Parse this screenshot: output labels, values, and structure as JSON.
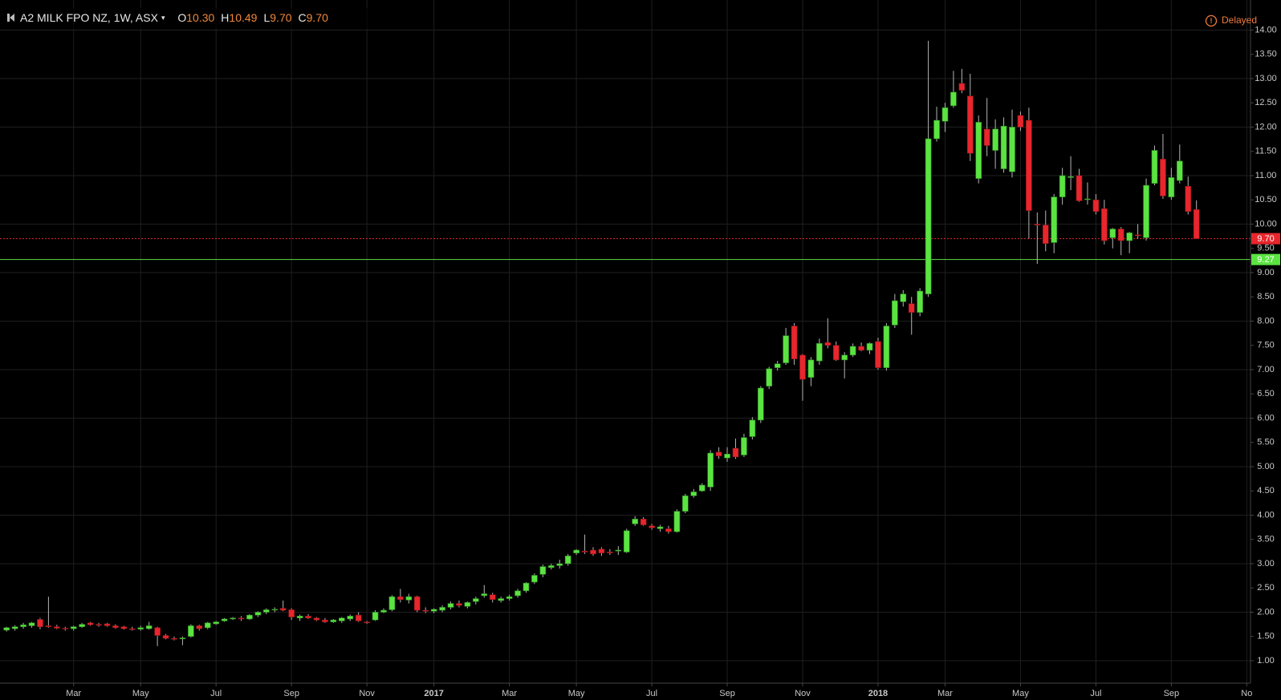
{
  "header": {
    "symbol": "A2 MILK FPO NZ, 1W, ASX",
    "ohlc": [
      {
        "key": "O",
        "value": "10.30"
      },
      {
        "key": "H",
        "value": "10.49"
      },
      {
        "key": "L",
        "value": "9.70"
      },
      {
        "key": "C",
        "value": "9.70"
      }
    ],
    "status": "Delayed"
  },
  "chart_data": {
    "type": "candlestick",
    "up_color": "#5be342",
    "down_color": "#e8262d",
    "grid": true,
    "categories": [
      null,
      null,
      null,
      null,
      null,
      null,
      null,
      null,
      "Mar",
      null,
      null,
      null,
      null,
      null,
      null,
      null,
      "May",
      null,
      null,
      null,
      null,
      null,
      null,
      null,
      null,
      "Jul",
      null,
      null,
      null,
      null,
      null,
      null,
      null,
      null,
      "Sep",
      null,
      null,
      null,
      null,
      null,
      null,
      null,
      null,
      "Nov",
      null,
      null,
      null,
      null,
      null,
      null,
      null,
      "2017",
      null,
      null,
      null,
      null,
      null,
      null,
      null,
      null,
      "Mar",
      null,
      null,
      null,
      null,
      null,
      null,
      null,
      "May",
      null,
      null,
      null,
      null,
      null,
      null,
      null,
      null,
      "Jul",
      null,
      null,
      null,
      null,
      null,
      null,
      null,
      null,
      "Sep",
      null,
      null,
      null,
      null,
      null,
      null,
      null,
      null,
      "Nov",
      null,
      null,
      null,
      null,
      null,
      null,
      null,
      null,
      "2018",
      null,
      null,
      null,
      null,
      null,
      null,
      null,
      "Mar",
      null,
      null,
      null,
      null,
      null,
      null,
      null,
      null,
      "May",
      null,
      null,
      null,
      null,
      null,
      null,
      null,
      null,
      "Jul",
      null,
      null,
      null,
      null,
      null,
      null,
      null,
      null,
      "Sep",
      null,
      null,
      null,
      null,
      null,
      null,
      null,
      null,
      "No"
    ],
    "open": [
      1.63,
      1.66,
      1.7,
      1.72,
      1.85,
      1.72,
      1.7,
      1.67,
      1.66,
      1.7,
      1.78,
      1.75,
      1.76,
      1.72,
      1.7,
      1.66,
      1.65,
      1.66,
      1.68,
      1.52,
      1.46,
      1.45,
      1.5,
      1.72,
      1.68,
      1.76,
      1.82,
      1.86,
      1.88,
      1.86,
      1.94,
      2.0,
      2.05,
      2.08,
      2.05,
      1.88,
      1.92,
      1.88,
      1.84,
      1.8,
      1.82,
      1.86,
      1.94,
      1.8,
      1.84,
      2.0,
      2.05,
      2.32,
      2.25,
      2.32,
      2.04,
      2.02,
      2.04,
      2.1,
      2.18,
      2.12,
      2.22,
      2.34,
      2.36,
      2.24,
      2.28,
      2.34,
      2.44,
      2.62,
      2.78,
      2.92,
      2.96,
      3.0,
      3.22,
      3.26,
      3.28,
      3.3,
      3.24,
      3.26,
      3.24,
      3.82,
      3.92,
      3.78,
      3.72,
      3.72,
      3.66,
      4.08,
      4.4,
      4.5,
      4.58,
      5.3,
      5.18,
      5.38,
      5.24,
      5.62,
      5.96,
      6.66,
      7.04,
      7.14,
      7.9,
      7.3,
      6.84,
      7.18,
      7.56,
      7.5,
      7.2,
      7.3,
      7.48,
      7.4,
      7.58,
      7.04,
      7.92,
      8.4,
      8.36,
      8.18,
      8.56,
      11.76,
      12.12,
      12.44,
      12.9,
      12.64,
      10.94,
      11.96,
      11.52,
      11.14,
      11.08,
      12.24,
      12.14,
      10.0,
      9.98,
      9.62,
      10.56,
      10.96,
      11.0,
      10.52,
      10.5,
      10.32,
      9.72,
      9.9,
      9.66,
      9.78,
      9.72,
      10.84,
      11.34,
      10.56,
      10.9,
      10.78,
      10.3,
      null,
      null,
      null,
      null,
      null,
      null
    ],
    "high": [
      1.7,
      1.73,
      1.78,
      1.8,
      1.88,
      2.32,
      1.74,
      1.7,
      1.72,
      1.78,
      1.8,
      1.78,
      1.78,
      1.75,
      1.72,
      1.7,
      1.72,
      1.8,
      1.7,
      1.55,
      1.5,
      1.5,
      1.75,
      1.74,
      1.8,
      1.82,
      1.88,
      1.9,
      1.92,
      1.96,
      2.02,
      2.08,
      2.1,
      2.24,
      2.08,
      1.95,
      1.96,
      1.9,
      1.88,
      1.86,
      1.9,
      1.95,
      2.0,
      1.82,
      2.04,
      2.08,
      2.35,
      2.48,
      2.38,
      2.34,
      2.1,
      2.08,
      2.14,
      2.22,
      2.24,
      2.22,
      2.32,
      2.56,
      2.4,
      2.32,
      2.36,
      2.48,
      2.62,
      2.8,
      2.98,
      3.0,
      3.08,
      3.2,
      3.3,
      3.6,
      3.34,
      3.34,
      3.3,
      3.36,
      3.72,
      3.98,
      3.96,
      3.82,
      3.8,
      3.78,
      4.12,
      4.44,
      4.54,
      4.66,
      5.34,
      5.4,
      5.4,
      5.58,
      5.68,
      6.02,
      6.66,
      7.06,
      7.18,
      7.86,
      7.96,
      7.32,
      7.26,
      7.64,
      8.06,
      7.58,
      7.36,
      7.54,
      7.56,
      7.56,
      7.66,
      7.96,
      8.56,
      8.64,
      8.5,
      8.68,
      13.78,
      12.42,
      12.5,
      13.16,
      13.2,
      13.1,
      12.24,
      12.6,
      12.16,
      12.2,
      12.36,
      12.32,
      12.4,
      10.24,
      10.28,
      10.62,
      11.16,
      11.4,
      11.14,
      10.86,
      10.62,
      10.5,
      9.92,
      9.94,
      9.84,
      10.0,
      10.94,
      11.62,
      11.86,
      11.16,
      11.64,
      10.98,
      10.49,
      null,
      null,
      null,
      null,
      null,
      null
    ],
    "low": [
      1.6,
      1.62,
      1.66,
      1.68,
      1.65,
      1.68,
      1.65,
      1.62,
      1.62,
      1.68,
      1.72,
      1.7,
      1.7,
      1.66,
      1.64,
      1.62,
      1.62,
      1.64,
      1.3,
      1.44,
      1.42,
      1.32,
      1.48,
      1.62,
      1.65,
      1.74,
      1.8,
      1.84,
      1.82,
      1.84,
      1.9,
      1.96,
      2.0,
      2.02,
      1.84,
      1.82,
      1.86,
      1.82,
      1.78,
      1.78,
      1.78,
      1.82,
      1.8,
      1.76,
      1.82,
      1.98,
      2.02,
      2.2,
      2.18,
      2.0,
      1.98,
      1.98,
      2.0,
      2.06,
      2.1,
      2.08,
      2.16,
      2.3,
      2.2,
      2.2,
      2.24,
      2.3,
      2.4,
      2.58,
      2.72,
      2.88,
      2.9,
      2.96,
      3.18,
      3.2,
      3.16,
      3.16,
      3.18,
      3.18,
      3.22,
      3.78,
      3.78,
      3.7,
      3.66,
      3.62,
      3.64,
      4.04,
      4.36,
      4.48,
      4.5,
      5.16,
      5.1,
      5.16,
      5.2,
      5.56,
      5.9,
      6.6,
      6.98,
      7.1,
      7.1,
      6.36,
      6.66,
      7.1,
      7.44,
      7.18,
      6.82,
      7.26,
      7.38,
      7.32,
      7.0,
      6.98,
      7.86,
      8.3,
      7.72,
      8.1,
      8.5,
      11.7,
      11.9,
      12.4,
      12.7,
      11.3,
      10.84,
      11.4,
      11.14,
      11.06,
      10.96,
      11.92,
      9.7,
      9.18,
      9.44,
      9.4,
      10.4,
      10.7,
      10.46,
      10.4,
      10.2,
      9.58,
      9.5,
      9.36,
      9.4,
      9.7,
      9.66,
      10.8,
      10.52,
      10.5,
      10.84,
      10.2,
      9.7,
      null,
      null,
      null,
      null,
      null,
      null
    ],
    "close": [
      1.68,
      1.7,
      1.74,
      1.78,
      1.7,
      1.7,
      1.67,
      1.66,
      1.7,
      1.75,
      1.74,
      1.73,
      1.72,
      1.68,
      1.66,
      1.64,
      1.68,
      1.72,
      1.52,
      1.46,
      1.44,
      1.47,
      1.72,
      1.66,
      1.78,
      1.8,
      1.86,
      1.88,
      1.86,
      1.94,
      2.0,
      2.05,
      2.06,
      2.04,
      1.9,
      1.92,
      1.88,
      1.84,
      1.8,
      1.84,
      1.88,
      1.92,
      1.82,
      1.78,
      2.0,
      2.04,
      2.32,
      2.26,
      2.32,
      2.04,
      2.02,
      2.06,
      2.1,
      2.18,
      2.14,
      2.2,
      2.28,
      2.38,
      2.26,
      2.28,
      2.32,
      2.44,
      2.6,
      2.76,
      2.94,
      2.96,
      3.0,
      3.16,
      3.28,
      3.24,
      3.2,
      3.22,
      3.22,
      3.28,
      3.68,
      3.92,
      3.8,
      3.74,
      3.76,
      3.66,
      4.08,
      4.4,
      4.48,
      4.62,
      5.28,
      5.22,
      5.26,
      5.2,
      5.6,
      5.96,
      6.62,
      7.02,
      7.12,
      7.7,
      7.22,
      6.8,
      7.2,
      7.54,
      7.5,
      7.2,
      7.3,
      7.48,
      7.4,
      7.54,
      7.04,
      7.9,
      8.42,
      8.56,
      8.18,
      8.62,
      11.76,
      12.14,
      12.4,
      12.72,
      12.76,
      11.46,
      12.1,
      11.62,
      11.96,
      12.02,
      12.0,
      12.0,
      10.28,
      9.98,
      9.6,
      10.56,
      11.0,
      10.98,
      10.48,
      10.52,
      10.26,
      9.66,
      9.9,
      9.66,
      9.82,
      9.76,
      10.8,
      11.52,
      10.58,
      10.96,
      11.3,
      10.26,
      9.7,
      null,
      null,
      null,
      null,
      null,
      null
    ],
    "ylim": [
      0.57,
      14.62
    ],
    "yticks": [
      {
        "value": 1,
        "label": "1.00"
      },
      {
        "value": 1.5,
        "label": "1.50"
      },
      {
        "value": 2,
        "label": "2.00"
      },
      {
        "value": 2.5,
        "label": "2.50"
      },
      {
        "value": 3,
        "label": "3.00"
      },
      {
        "value": 3.5,
        "label": "3.50"
      },
      {
        "value": 4,
        "label": "4.00"
      },
      {
        "value": 4.5,
        "label": "4.50"
      },
      {
        "value": 5,
        "label": "5.00"
      },
      {
        "value": 5.5,
        "label": "5.50"
      },
      {
        "value": 6,
        "label": "6.00"
      },
      {
        "value": 6.5,
        "label": "6.50"
      },
      {
        "value": 7,
        "label": "7.00"
      },
      {
        "value": 7.5,
        "label": "7.50"
      },
      {
        "value": 8,
        "label": "8.00"
      },
      {
        "value": 8.5,
        "label": "8.50"
      },
      {
        "value": 9,
        "label": "9.00"
      },
      {
        "value": 9.5,
        "label": "9.50"
      },
      {
        "value": 10,
        "label": "10.00"
      },
      {
        "value": 10.5,
        "label": "10.50"
      },
      {
        "value": 11,
        "label": "11.00"
      },
      {
        "value": 11.5,
        "label": "11.50"
      },
      {
        "value": 12,
        "label": "12.00"
      },
      {
        "value": 12.5,
        "label": "12.50"
      },
      {
        "value": 13,
        "label": "13.00"
      },
      {
        "value": 13.5,
        "label": "13.50"
      },
      {
        "value": 14,
        "label": "14.00"
      }
    ],
    "price_lines": [
      {
        "value": 9.7,
        "label": "9.70",
        "color": "#e8262d",
        "style": "dotted"
      },
      {
        "value": 9.27,
        "label": "9.27",
        "color": "#5be342",
        "style": "solid"
      }
    ]
  }
}
